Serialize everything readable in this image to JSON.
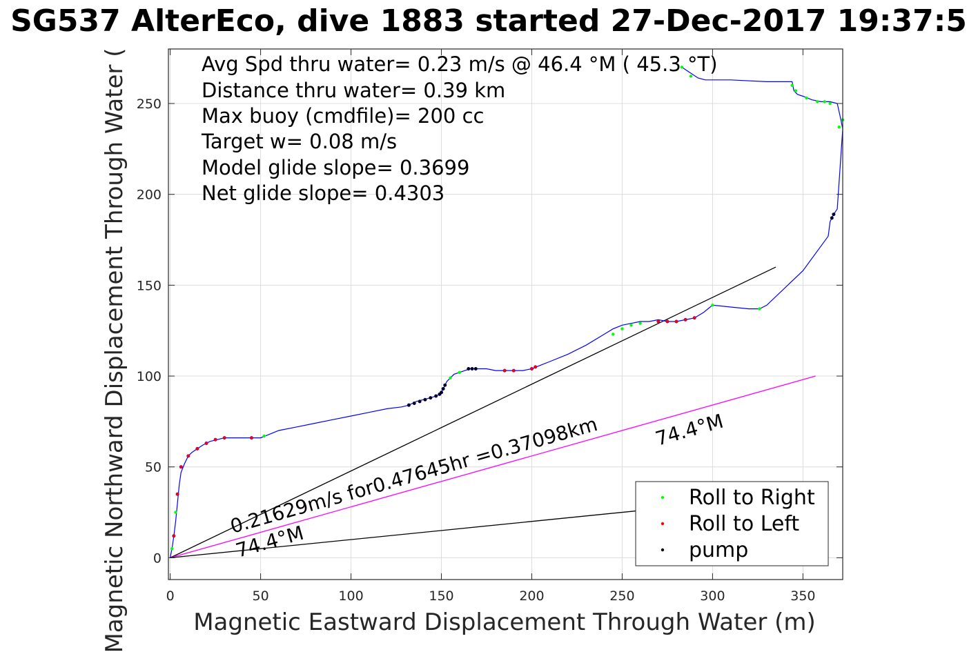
{
  "chart_data": {
    "type": "line",
    "title": "SG537 AlterEco, dive 1883 started 27-Dec-2017 19:37:5",
    "xlabel": "Magnetic Eastward Displacement Through Water (m)",
    "ylabel": "Magnetic Northward Displacement Through Water (",
    "xlim": [
      -1,
      372
    ],
    "ylim": [
      -12,
      280
    ],
    "x_ticks": [
      0,
      50,
      100,
      150,
      200,
      250,
      300,
      350
    ],
    "y_ticks": [
      0,
      50,
      100,
      150,
      200,
      250
    ],
    "grid": true,
    "legend_position": "bottom-right",
    "annotations": [
      "Avg Spd thru water=  0.23 m/s @  46.4 °M ( 45.3 °T)",
      "Distance thru water=  0.39 km",
      "Max buoy (cmdfile)= 200 cc",
      "Target w= 0.08 m/s",
      "Model glide slope= 0.3699",
      "Net glide slope= 0.4303"
    ],
    "line_labels": {
      "speed": "0.21629m/s for0.47645hr =0.37098km",
      "heading_upper": "74.4°M",
      "heading_lower": "74.4°M"
    },
    "series": [
      {
        "name": "",
        "color": "#0000ff",
        "x": [
          0,
          1,
          2,
          3,
          4,
          5,
          6,
          8,
          10,
          12,
          15,
          18,
          22,
          26,
          30,
          35,
          40,
          45,
          50,
          55,
          60,
          70,
          80,
          90,
          100,
          110,
          120,
          128,
          132,
          136,
          140,
          144,
          147,
          149,
          150,
          151,
          152,
          153,
          155,
          157,
          160,
          163,
          166,
          170,
          175,
          180,
          185,
          190,
          195,
          200,
          205,
          210,
          220,
          230,
          240,
          245,
          250,
          255,
          260,
          265,
          270,
          275,
          280,
          285,
          290,
          295,
          300,
          310,
          320,
          326,
          330,
          350,
          364,
          365,
          367,
          369,
          372,
          371,
          369,
          365,
          360,
          355,
          350,
          347,
          345,
          344,
          330,
          310,
          300,
          296,
          292,
          289,
          286,
          283
        ],
        "y": [
          0,
          5,
          12,
          20,
          30,
          40,
          47,
          52,
          56,
          58,
          60,
          62,
          64,
          65,
          66,
          66,
          66,
          66,
          66,
          68,
          70,
          72,
          74,
          76,
          78,
          80,
          82,
          83,
          84,
          86,
          87,
          88,
          89,
          90,
          91,
          93,
          95,
          97,
          99,
          101,
          102,
          103,
          104,
          104,
          104,
          103,
          103,
          103,
          103,
          104,
          106,
          108,
          112,
          117,
          123,
          126,
          128,
          129,
          130,
          130,
          131,
          130,
          130,
          131,
          132,
          135,
          139,
          138,
          137,
          137,
          139,
          158,
          177,
          185,
          189,
          192,
          236,
          241,
          250,
          251,
          251,
          252,
          254,
          255,
          257,
          262,
          262,
          263,
          263,
          263,
          264,
          266,
          268,
          270
        ]
      },
      {
        "name": "Roll to Right",
        "color": "#00ff00",
        "x": [
          1,
          3,
          52,
          155,
          160,
          245,
          250,
          255,
          260,
          283,
          288,
          300,
          326,
          344,
          346,
          352,
          358,
          362,
          365,
          370,
          372
        ],
        "y": [
          5,
          25,
          67,
          99,
          102,
          123,
          126,
          128,
          129,
          270,
          265,
          139,
          137,
          260,
          257,
          253,
          251,
          251,
          250,
          237,
          241
        ]
      },
      {
        "name": "Roll to Left",
        "color": "#ff0000",
        "x": [
          2,
          4,
          6,
          10,
          15,
          20,
          25,
          30,
          45,
          185,
          190,
          200,
          202,
          270,
          275,
          280,
          285,
          290
        ],
        "y": [
          12,
          35,
          50,
          56,
          60,
          63,
          65,
          66,
          66,
          103,
          103,
          104,
          105,
          130,
          130,
          130,
          131,
          132
        ],
        "edge_color": "#800080"
      },
      {
        "name": "pump",
        "color": "#000000",
        "x": [
          132,
          135,
          138,
          141,
          144,
          147,
          149,
          150,
          151,
          152,
          165,
          167,
          169,
          366,
          367
        ],
        "y": [
          84,
          85,
          86,
          87,
          88,
          89,
          90,
          91,
          93,
          95,
          104,
          104,
          104,
          187,
          189
        ],
        "edge_color": "#000080"
      }
    ],
    "reference_lines": [
      {
        "x": [
          0,
          335
        ],
        "y": [
          0,
          160
        ],
        "color": "#000000"
      },
      {
        "x": [
          0,
          357
        ],
        "y": [
          0,
          100
        ],
        "color": "#ff00ff"
      },
      {
        "x": [
          0,
          360
        ],
        "y": [
          0,
          36
        ],
        "color": "#000000"
      }
    ]
  }
}
